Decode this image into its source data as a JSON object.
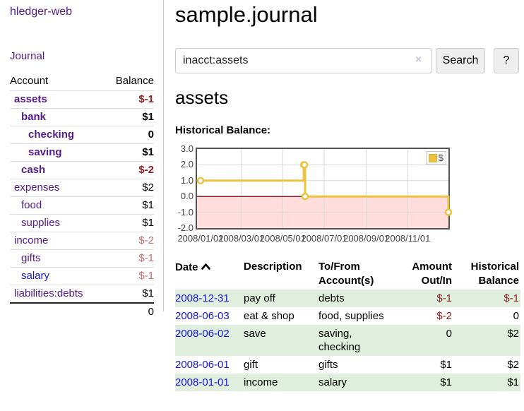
{
  "app": {
    "brand": "hledger-web",
    "journal_link": "Journal"
  },
  "sidebar": {
    "headers": {
      "account": "Account",
      "balance": "Balance"
    },
    "accounts": [
      {
        "label": "assets",
        "indent": 1,
        "bold": true,
        "balance": "$-1",
        "balance_class": "neg-strong",
        "link_class": "purple"
      },
      {
        "label": "bank",
        "indent": 2,
        "bold": true,
        "balance": "$1",
        "balance_class": "",
        "link_class": "purple"
      },
      {
        "label": "checking",
        "indent": 3,
        "bold": true,
        "balance": "0",
        "balance_class": "",
        "link_class": "purple"
      },
      {
        "label": "saving",
        "indent": 3,
        "bold": true,
        "balance": "$1",
        "balance_class": "",
        "link_class": "purple"
      },
      {
        "label": "cash",
        "indent": 2,
        "bold": true,
        "balance": "$-2",
        "balance_class": "neg-strong",
        "link_class": "purple"
      },
      {
        "label": "expenses",
        "indent": 1,
        "bold": false,
        "balance": "$2",
        "balance_class": "",
        "link_class": "purple"
      },
      {
        "label": "food",
        "indent": 2,
        "bold": false,
        "balance": "$1",
        "balance_class": "",
        "link_class": "purple"
      },
      {
        "label": "supplies",
        "indent": 2,
        "bold": false,
        "balance": "$1",
        "balance_class": "",
        "link_class": "purple"
      },
      {
        "label": "income",
        "indent": 1,
        "bold": false,
        "balance": "$-2",
        "balance_class": "neg-soft",
        "link_class": "purple"
      },
      {
        "label": "gifts",
        "indent": 2,
        "bold": false,
        "balance": "$-1",
        "balance_class": "neg-soft",
        "link_class": "purple"
      },
      {
        "label": "salary",
        "indent": 2,
        "bold": false,
        "balance": "$-1",
        "balance_class": "neg-soft",
        "link_class": "blue"
      },
      {
        "label": "liabilities:debts",
        "indent": 1,
        "bold": false,
        "balance": "$1",
        "balance_class": "",
        "link_class": "purple"
      }
    ],
    "total": "0"
  },
  "main": {
    "title": "sample.journal",
    "search": {
      "value": "inacct:assets",
      "clear_icon": "×",
      "search_button": "Search",
      "help_button": "?"
    },
    "account_heading": "assets",
    "section_label": "Historical Balance:"
  },
  "chart_data": {
    "type": "line",
    "mode": "steps",
    "title": "Historical Balance of assets",
    "legend": [
      {
        "label": "$",
        "color": "#edc240"
      }
    ],
    "x": [
      "2008-01-01",
      "2008-06-01",
      "2008-06-02",
      "2008-06-03",
      "2008-12-31"
    ],
    "values": [
      1,
      2,
      2,
      0,
      -1
    ],
    "xrange": [
      "2008-01-01",
      "2008-12-31"
    ],
    "ylim": [
      -2,
      3
    ],
    "ytick_values": [
      3,
      2,
      1,
      0,
      -1,
      -2
    ],
    "yticks": [
      "3.0",
      "2.0",
      "1.0",
      "0.0",
      "-1.0",
      "-2.0"
    ],
    "xticks": [
      {
        "label": "2008/01/01",
        "date": "2008-01-01"
      },
      {
        "label": "2008/03/01",
        "date": "2008-03-01"
      },
      {
        "label": "2008/05/01",
        "date": "2008-05-01"
      },
      {
        "label": "2008/07/01",
        "date": "2008-07-01"
      },
      {
        "label": "2008/09/01",
        "date": "2008-09-01"
      },
      {
        "label": "2008/11/01",
        "date": "2008-11-01"
      }
    ],
    "grid": true,
    "legend_position": "top-right",
    "colors": {
      "line": "#edc240",
      "marker_fill": "#ffffff",
      "negative_region": "#ffdddd",
      "zero_line": "#a02128",
      "grid": "#d9d9d9",
      "border": "#545454"
    }
  },
  "register": {
    "headers": {
      "date": "Date",
      "description": "Description",
      "accounts": "To/From Account(s)",
      "amount": "Amount Out/In",
      "balance": "Historical Balance"
    },
    "rows": [
      {
        "date": "2008-12-31",
        "description": "pay off",
        "accounts": "debts",
        "amount": "$-1",
        "balance": "$-1"
      },
      {
        "date": "2008-06-03",
        "description": "eat & shop",
        "accounts": "food, supplies",
        "amount": "$-2",
        "balance": "0"
      },
      {
        "date": "2008-06-02",
        "description": "save",
        "accounts": "saving, checking",
        "amount": "0",
        "balance": "$2"
      },
      {
        "date": "2008-06-01",
        "description": "gift",
        "accounts": "gifts",
        "amount": "$1",
        "balance": "$2"
      },
      {
        "date": "2008-01-01",
        "description": "income",
        "accounts": "salary",
        "amount": "$1",
        "balance": "$1"
      }
    ]
  }
}
